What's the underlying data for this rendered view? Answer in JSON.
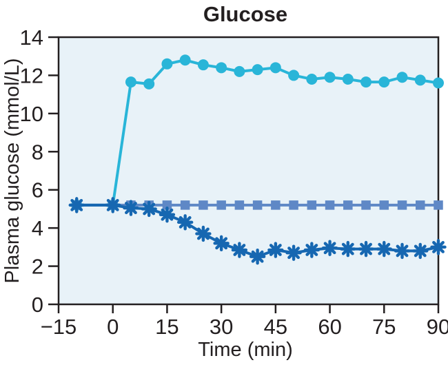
{
  "chart_data": {
    "type": "line",
    "title": "Glucose",
    "xlabel": "Time (min)",
    "ylabel": "Plasma glucose (mmol/L)",
    "xlim": [
      -15,
      90
    ],
    "ylim": [
      0,
      14
    ],
    "x_ticks": [
      -15,
      0,
      15,
      30,
      45,
      60,
      75,
      90
    ],
    "x_tick_labels": [
      "−15",
      "0",
      "15",
      "30",
      "45",
      "60",
      "75",
      "90"
    ],
    "y_ticks": [
      0,
      2,
      4,
      6,
      8,
      10,
      12,
      14
    ],
    "y_tick_labels": [
      "0",
      "2",
      "4",
      "6",
      "8",
      "10",
      "12",
      "14"
    ],
    "grid": false,
    "legend_position": "none",
    "plot_background": "#e8f2f8",
    "page_background": "#ffffff",
    "axis_color": "#231f20",
    "x": [
      -10,
      0,
      5,
      10,
      15,
      20,
      25,
      30,
      35,
      40,
      45,
      50,
      55,
      60,
      65,
      70,
      75,
      80,
      85,
      90
    ],
    "series": [
      {
        "name": "circles-series",
        "marker": "circle",
        "color": "#29b5d8",
        "values": [
          5.2,
          5.2,
          11.65,
          11.55,
          12.6,
          12.8,
          12.55,
          12.4,
          12.2,
          12.3,
          12.4,
          12.0,
          11.8,
          11.9,
          11.8,
          11.65,
          11.65,
          11.9,
          11.75,
          11.6
        ]
      },
      {
        "name": "squares-series",
        "marker": "square",
        "color": "#5f88c6",
        "values": [
          5.2,
          5.2,
          5.2,
          5.2,
          5.2,
          5.2,
          5.2,
          5.2,
          5.2,
          5.2,
          5.2,
          5.2,
          5.2,
          5.2,
          5.2,
          5.2,
          5.2,
          5.2,
          5.2,
          5.2
        ]
      },
      {
        "name": "asterisks-series",
        "marker": "asterisk",
        "color": "#1667b1",
        "values": [
          5.2,
          5.2,
          5.05,
          5.0,
          4.7,
          4.3,
          3.7,
          3.2,
          2.85,
          2.5,
          2.85,
          2.7,
          2.85,
          2.95,
          2.9,
          2.9,
          2.9,
          2.8,
          2.8,
          3.0
        ]
      }
    ]
  }
}
